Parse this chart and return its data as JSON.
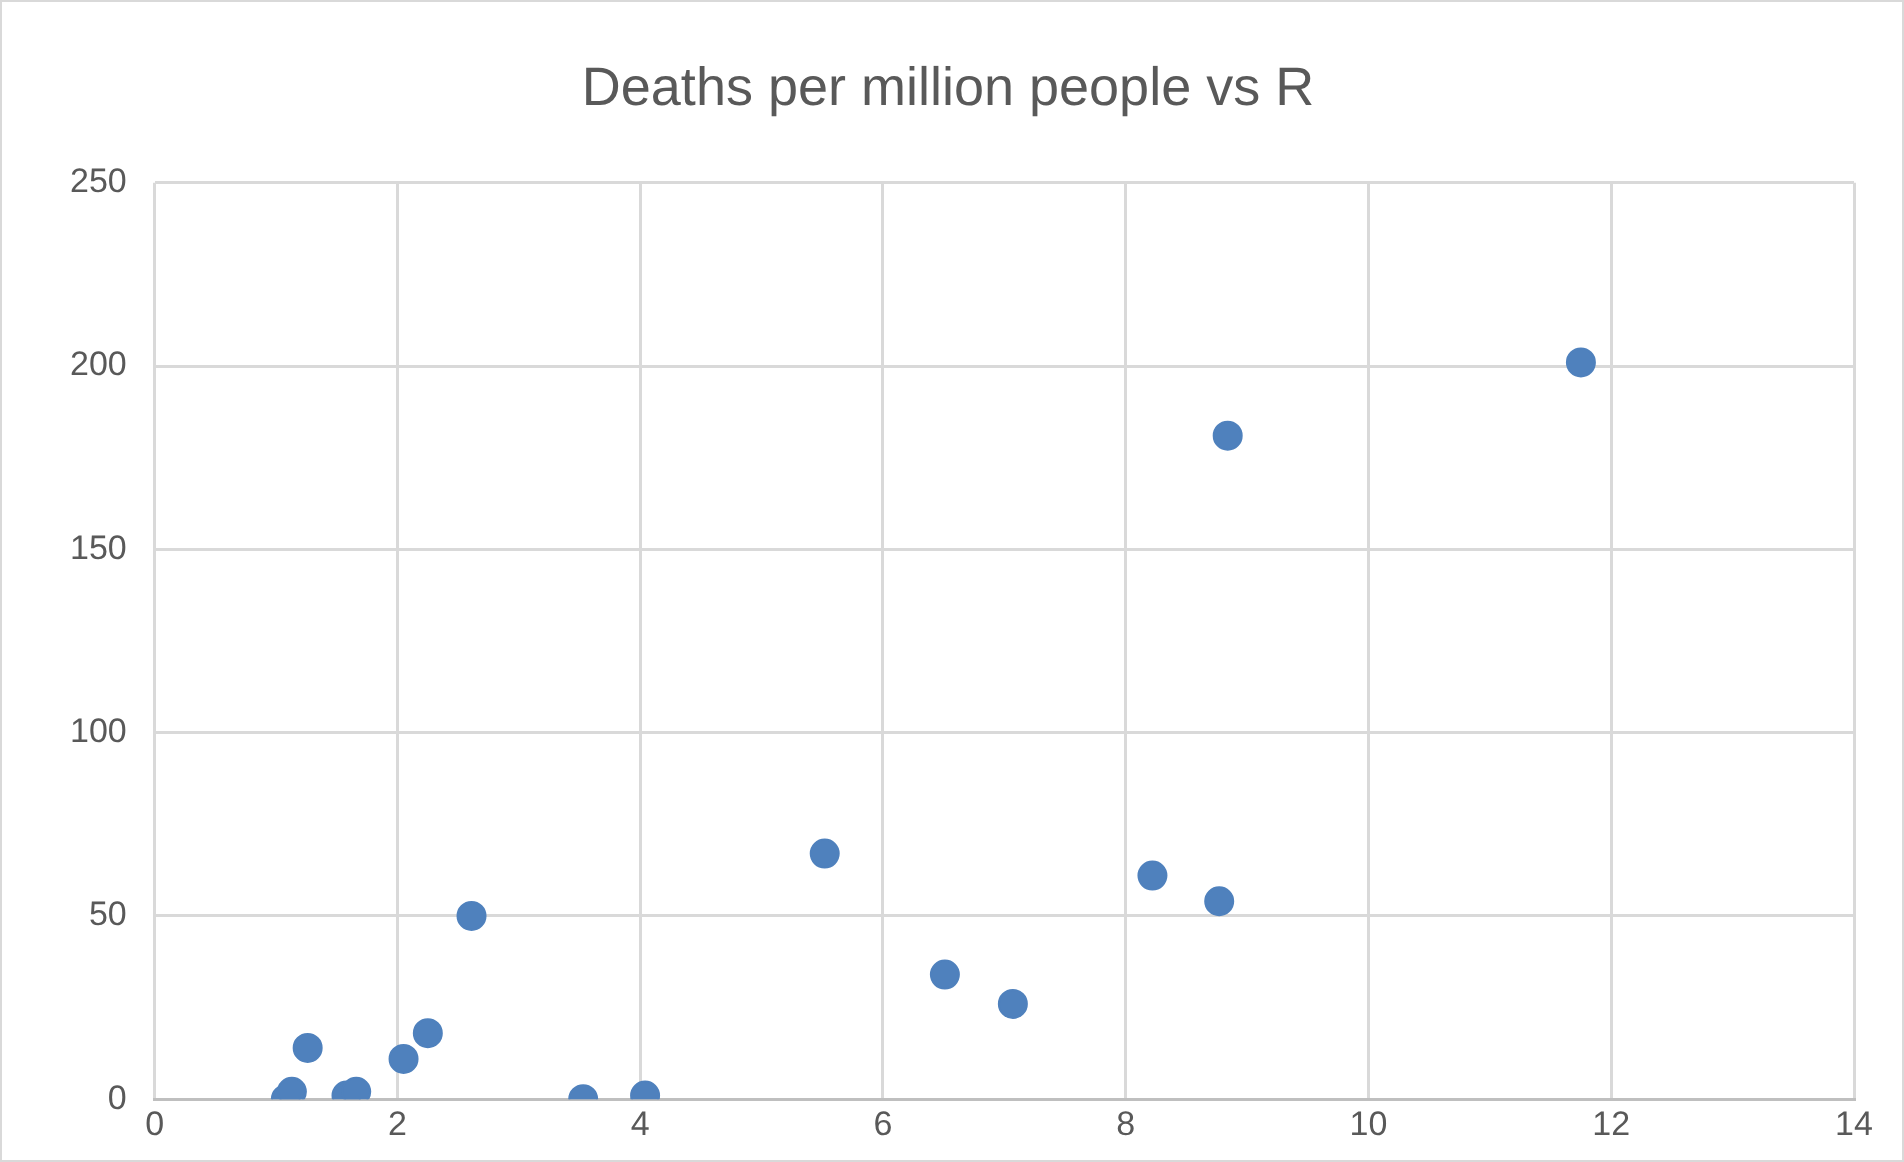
{
  "chart_data": {
    "type": "scatter",
    "title": "Deaths per million people vs R",
    "x": [
      1.08,
      1.13,
      1.26,
      1.58,
      1.66,
      2.05,
      2.25,
      2.61,
      3.53,
      4.04,
      5.52,
      6.51,
      7.07,
      8.22,
      8.77,
      8.84,
      11.75
    ],
    "series": [
      {
        "color": "#4f81bd",
        "values": [
          0,
          2,
          14,
          1,
          2,
          11,
          18,
          50,
          0,
          1,
          67,
          34,
          26,
          61,
          54,
          181,
          201
        ]
      }
    ],
    "xlim": [
      0,
      14
    ],
    "xticks": [
      0,
      2,
      4,
      6,
      8,
      10,
      12,
      14
    ],
    "ylim": [
      0,
      250
    ],
    "yticks": [
      0,
      50,
      100,
      150,
      200,
      250
    ],
    "grid": true,
    "legend": false,
    "marker": "circle"
  }
}
